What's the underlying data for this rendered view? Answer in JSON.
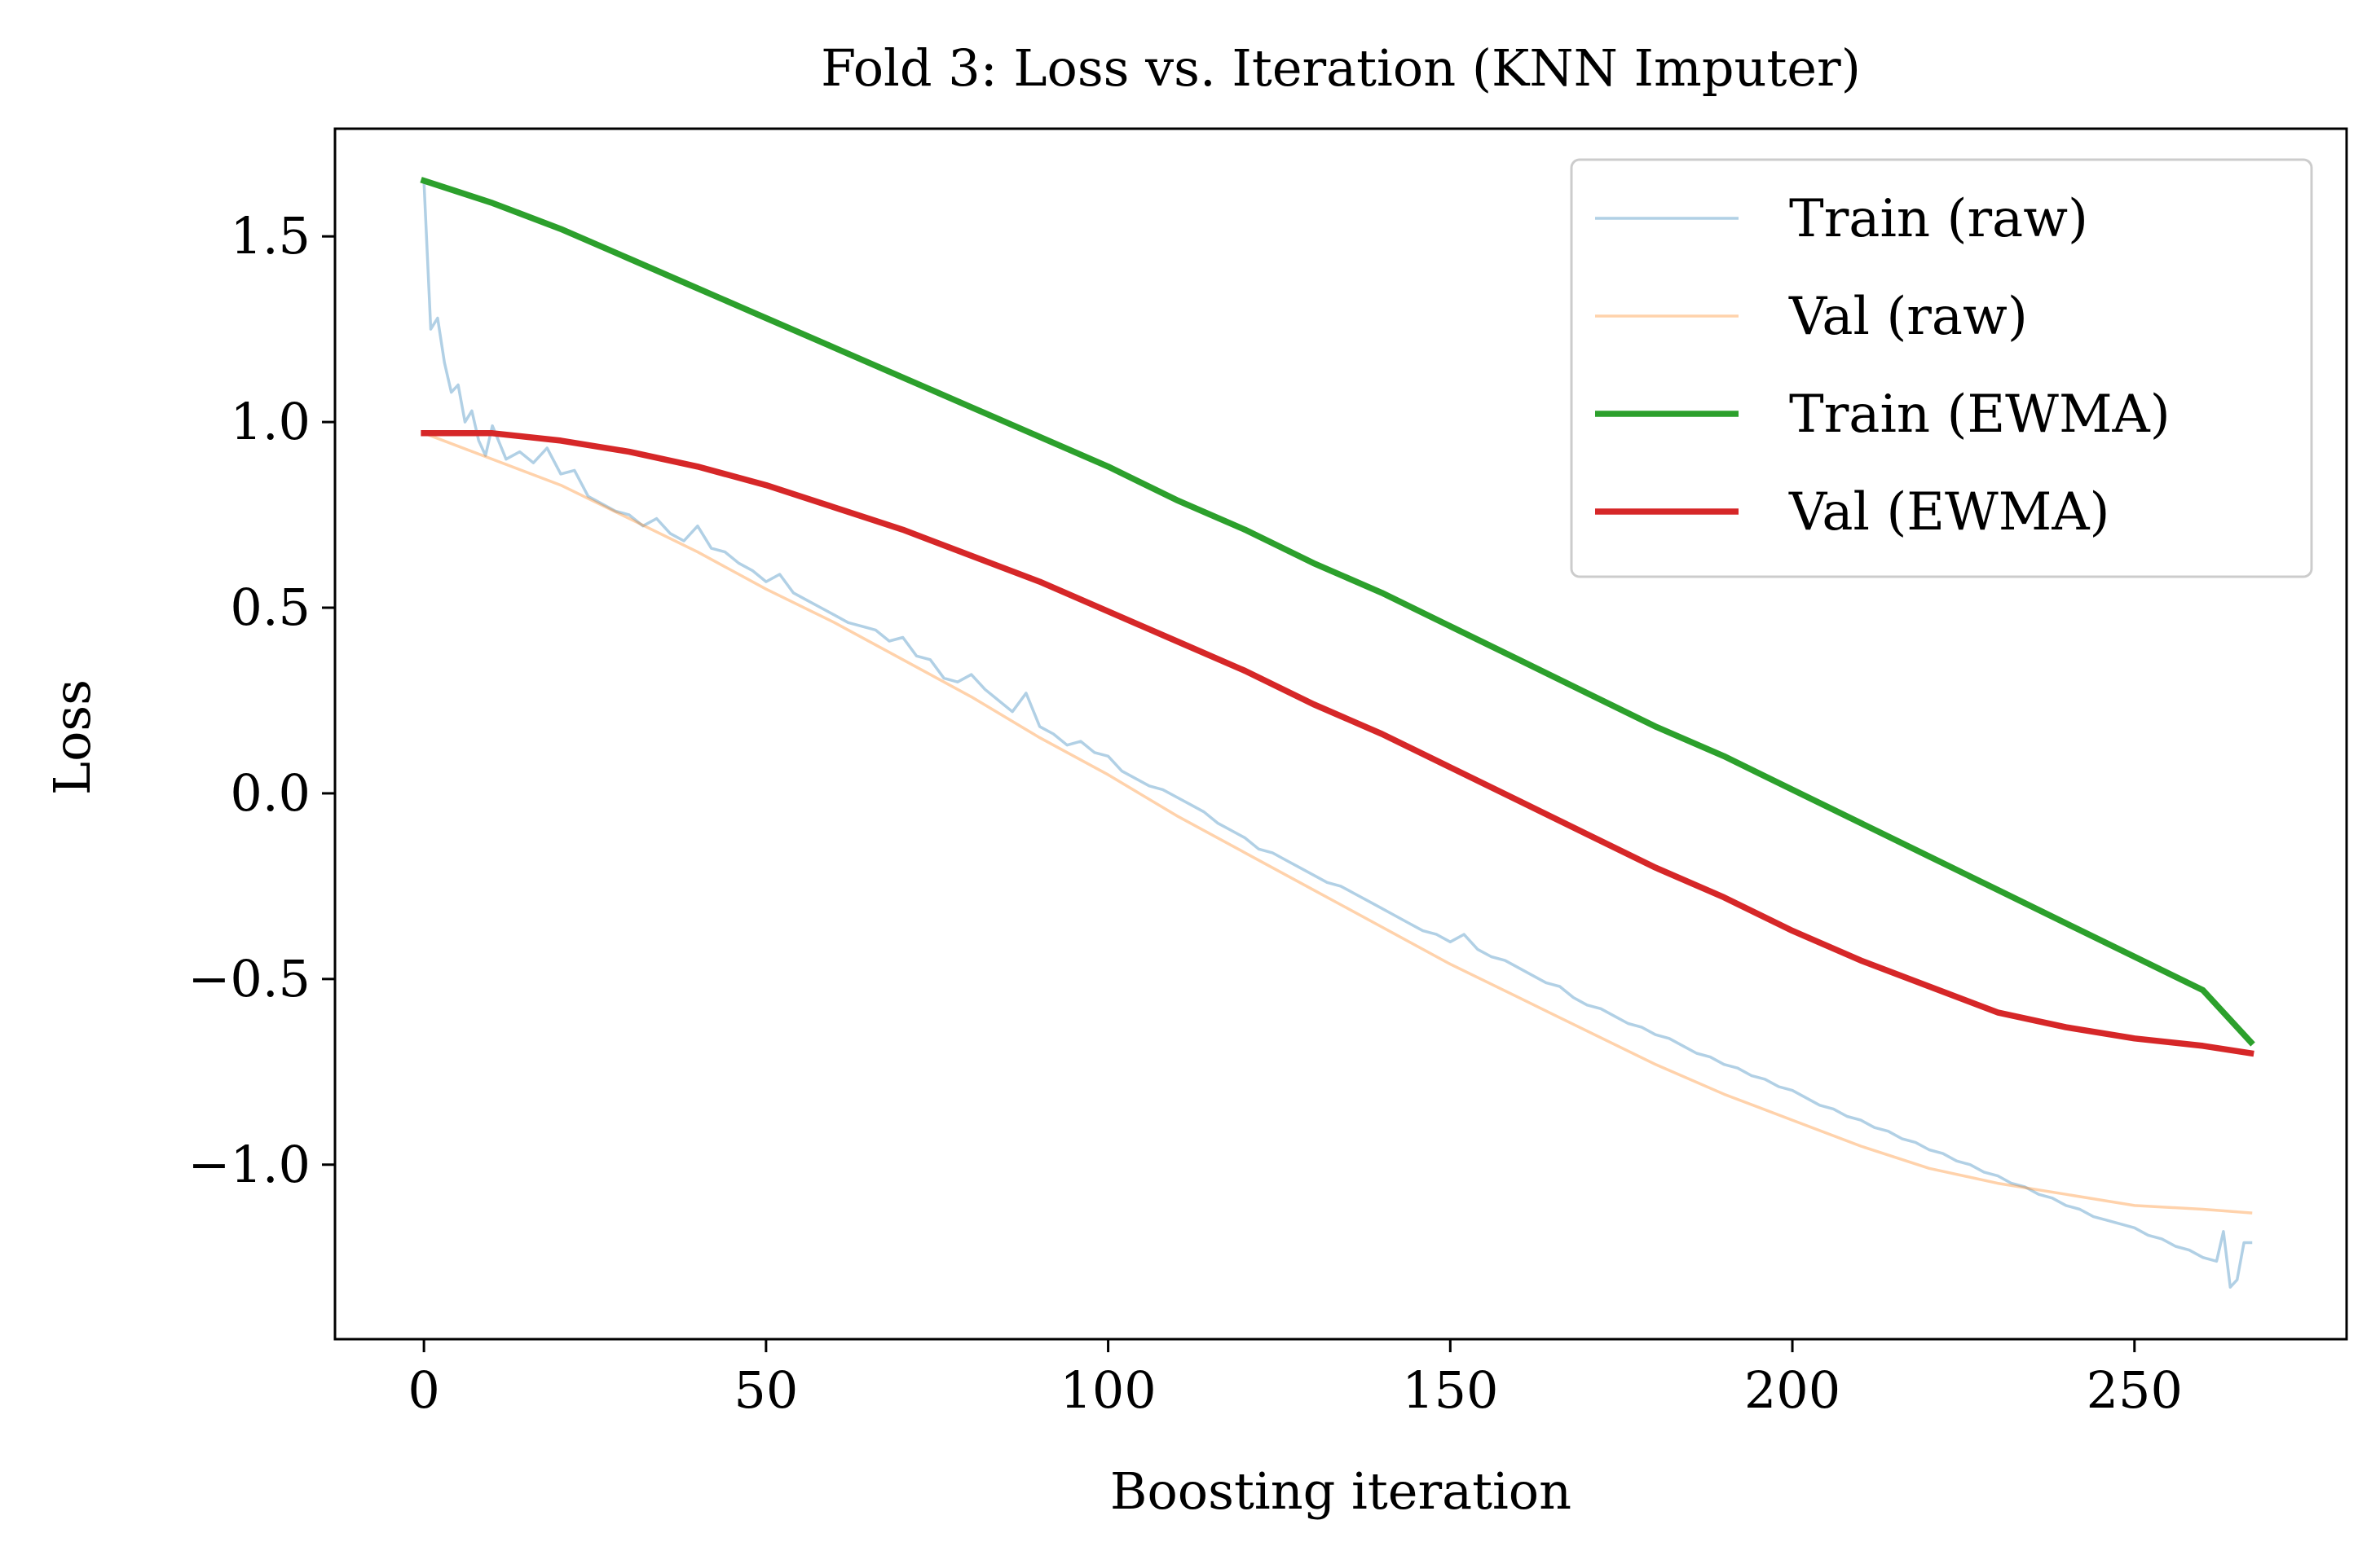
{
  "chart_data": {
    "type": "line",
    "title": "Fold 3: Loss vs. Iteration (KNN Imputer)",
    "xlabel": "Boosting iteration",
    "ylabel": "Loss",
    "xlim": [
      -13,
      281
    ],
    "ylim": [
      -1.47,
      1.79
    ],
    "xticks": [
      0,
      50,
      100,
      150,
      200,
      250
    ],
    "xtick_labels": [
      "0",
      "50",
      "100",
      "150",
      "200",
      "250"
    ],
    "yticks": [
      1.5,
      1.0,
      0.5,
      0.0,
      -0.5,
      -1.0
    ],
    "ytick_labels": [
      "1.5",
      "1.0",
      "0.5",
      "0.0",
      "−0.5",
      "−1.0"
    ],
    "grid": false,
    "legend_position": "top-right",
    "series": [
      {
        "name": "Train (raw)",
        "color": "#1f77b4",
        "opacity": 0.35,
        "width": "thin",
        "points": [
          [
            0,
            1.65
          ],
          [
            1,
            1.25
          ],
          [
            2,
            1.28
          ],
          [
            3,
            1.16
          ],
          [
            4,
            1.08
          ],
          [
            5,
            1.1
          ],
          [
            6,
            1.0
          ],
          [
            7,
            1.03
          ],
          [
            8,
            0.95
          ],
          [
            9,
            0.91
          ],
          [
            10,
            0.99
          ],
          [
            12,
            0.9
          ],
          [
            14,
            0.92
          ],
          [
            16,
            0.89
          ],
          [
            18,
            0.93
          ],
          [
            20,
            0.86
          ],
          [
            22,
            0.87
          ],
          [
            24,
            0.8
          ],
          [
            26,
            0.78
          ],
          [
            28,
            0.76
          ],
          [
            30,
            0.75
          ],
          [
            32,
            0.72
          ],
          [
            34,
            0.74
          ],
          [
            36,
            0.7
          ],
          [
            38,
            0.68
          ],
          [
            40,
            0.72
          ],
          [
            42,
            0.66
          ],
          [
            44,
            0.65
          ],
          [
            46,
            0.62
          ],
          [
            48,
            0.6
          ],
          [
            50,
            0.57
          ],
          [
            52,
            0.59
          ],
          [
            54,
            0.54
          ],
          [
            56,
            0.52
          ],
          [
            58,
            0.5
          ],
          [
            60,
            0.48
          ],
          [
            62,
            0.46
          ],
          [
            64,
            0.45
          ],
          [
            66,
            0.44
          ],
          [
            68,
            0.41
          ],
          [
            70,
            0.42
          ],
          [
            72,
            0.37
          ],
          [
            74,
            0.36
          ],
          [
            76,
            0.31
          ],
          [
            78,
            0.3
          ],
          [
            80,
            0.32
          ],
          [
            82,
            0.28
          ],
          [
            84,
            0.25
          ],
          [
            86,
            0.22
          ],
          [
            88,
            0.27
          ],
          [
            90,
            0.18
          ],
          [
            92,
            0.16
          ],
          [
            94,
            0.13
          ],
          [
            96,
            0.14
          ],
          [
            98,
            0.11
          ],
          [
            100,
            0.1
          ],
          [
            102,
            0.06
          ],
          [
            104,
            0.04
          ],
          [
            106,
            0.02
          ],
          [
            108,
            0.01
          ],
          [
            110,
            -0.01
          ],
          [
            112,
            -0.03
          ],
          [
            114,
            -0.05
          ],
          [
            116,
            -0.08
          ],
          [
            118,
            -0.1
          ],
          [
            120,
            -0.12
          ],
          [
            122,
            -0.15
          ],
          [
            124,
            -0.16
          ],
          [
            126,
            -0.18
          ],
          [
            128,
            -0.2
          ],
          [
            130,
            -0.22
          ],
          [
            132,
            -0.24
          ],
          [
            134,
            -0.25
          ],
          [
            136,
            -0.27
          ],
          [
            138,
            -0.29
          ],
          [
            140,
            -0.31
          ],
          [
            142,
            -0.33
          ],
          [
            144,
            -0.35
          ],
          [
            146,
            -0.37
          ],
          [
            148,
            -0.38
          ],
          [
            150,
            -0.4
          ],
          [
            152,
            -0.38
          ],
          [
            154,
            -0.42
          ],
          [
            156,
            -0.44
          ],
          [
            158,
            -0.45
          ],
          [
            160,
            -0.47
          ],
          [
            162,
            -0.49
          ],
          [
            164,
            -0.51
          ],
          [
            166,
            -0.52
          ],
          [
            168,
            -0.55
          ],
          [
            170,
            -0.57
          ],
          [
            172,
            -0.58
          ],
          [
            174,
            -0.6
          ],
          [
            176,
            -0.62
          ],
          [
            178,
            -0.63
          ],
          [
            180,
            -0.65
          ],
          [
            182,
            -0.66
          ],
          [
            184,
            -0.68
          ],
          [
            186,
            -0.7
          ],
          [
            188,
            -0.71
          ],
          [
            190,
            -0.73
          ],
          [
            192,
            -0.74
          ],
          [
            194,
            -0.76
          ],
          [
            196,
            -0.77
          ],
          [
            198,
            -0.79
          ],
          [
            200,
            -0.8
          ],
          [
            202,
            -0.82
          ],
          [
            204,
            -0.84
          ],
          [
            206,
            -0.85
          ],
          [
            208,
            -0.87
          ],
          [
            210,
            -0.88
          ],
          [
            212,
            -0.9
          ],
          [
            214,
            -0.91
          ],
          [
            216,
            -0.93
          ],
          [
            218,
            -0.94
          ],
          [
            220,
            -0.96
          ],
          [
            222,
            -0.97
          ],
          [
            224,
            -0.99
          ],
          [
            226,
            -1.0
          ],
          [
            228,
            -1.02
          ],
          [
            230,
            -1.03
          ],
          [
            232,
            -1.05
          ],
          [
            234,
            -1.06
          ],
          [
            236,
            -1.08
          ],
          [
            238,
            -1.09
          ],
          [
            240,
            -1.11
          ],
          [
            242,
            -1.12
          ],
          [
            244,
            -1.14
          ],
          [
            246,
            -1.15
          ],
          [
            248,
            -1.16
          ],
          [
            250,
            -1.17
          ],
          [
            252,
            -1.19
          ],
          [
            254,
            -1.2
          ],
          [
            256,
            -1.22
          ],
          [
            258,
            -1.23
          ],
          [
            260,
            -1.25
          ],
          [
            262,
            -1.26
          ],
          [
            263,
            -1.18
          ],
          [
            264,
            -1.33
          ],
          [
            265,
            -1.31
          ],
          [
            266,
            -1.21
          ],
          [
            267,
            -1.21
          ]
        ]
      },
      {
        "name": "Val (raw)",
        "color": "#ff7f0e",
        "opacity": 0.35,
        "width": "thin",
        "points": [
          [
            0,
            0.97
          ],
          [
            10,
            0.9
          ],
          [
            20,
            0.83
          ],
          [
            30,
            0.74
          ],
          [
            40,
            0.65
          ],
          [
            50,
            0.55
          ],
          [
            60,
            0.46
          ],
          [
            70,
            0.36
          ],
          [
            80,
            0.26
          ],
          [
            90,
            0.15
          ],
          [
            100,
            0.05
          ],
          [
            110,
            -0.06
          ],
          [
            120,
            -0.16
          ],
          [
            130,
            -0.26
          ],
          [
            140,
            -0.36
          ],
          [
            150,
            -0.46
          ],
          [
            160,
            -0.55
          ],
          [
            170,
            -0.64
          ],
          [
            180,
            -0.73
          ],
          [
            190,
            -0.81
          ],
          [
            200,
            -0.88
          ],
          [
            210,
            -0.95
          ],
          [
            220,
            -1.01
          ],
          [
            230,
            -1.05
          ],
          [
            240,
            -1.08
          ],
          [
            250,
            -1.11
          ],
          [
            260,
            -1.12
          ],
          [
            267,
            -1.13
          ]
        ]
      },
      {
        "name": "Train (EWMA)",
        "color": "#2ca02c",
        "opacity": 1,
        "width": "thick",
        "points": [
          [
            0,
            1.65
          ],
          [
            5,
            1.62
          ],
          [
            10,
            1.59
          ],
          [
            20,
            1.52
          ],
          [
            30,
            1.44
          ],
          [
            40,
            1.36
          ],
          [
            50,
            1.28
          ],
          [
            60,
            1.2
          ],
          [
            70,
            1.12
          ],
          [
            80,
            1.04
          ],
          [
            90,
            0.96
          ],
          [
            100,
            0.88
          ],
          [
            110,
            0.79
          ],
          [
            120,
            0.71
          ],
          [
            130,
            0.62
          ],
          [
            140,
            0.54
          ],
          [
            150,
            0.45
          ],
          [
            160,
            0.36
          ],
          [
            170,
            0.27
          ],
          [
            180,
            0.18
          ],
          [
            190,
            0.1
          ],
          [
            200,
            0.01
          ],
          [
            210,
            -0.08
          ],
          [
            220,
            -0.17
          ],
          [
            230,
            -0.26
          ],
          [
            240,
            -0.35
          ],
          [
            250,
            -0.44
          ],
          [
            260,
            -0.53
          ],
          [
            267,
            -0.67
          ]
        ]
      },
      {
        "name": "Val (EWMA)",
        "color": "#d62728",
        "opacity": 1,
        "width": "thick",
        "points": [
          [
            0,
            0.97
          ],
          [
            10,
            0.97
          ],
          [
            20,
            0.95
          ],
          [
            30,
            0.92
          ],
          [
            40,
            0.88
          ],
          [
            50,
            0.83
          ],
          [
            60,
            0.77
          ],
          [
            70,
            0.71
          ],
          [
            80,
            0.64
          ],
          [
            90,
            0.57
          ],
          [
            100,
            0.49
          ],
          [
            110,
            0.41
          ],
          [
            120,
            0.33
          ],
          [
            130,
            0.24
          ],
          [
            140,
            0.16
          ],
          [
            150,
            0.07
          ],
          [
            160,
            -0.02
          ],
          [
            170,
            -0.11
          ],
          [
            180,
            -0.2
          ],
          [
            190,
            -0.28
          ],
          [
            200,
            -0.37
          ],
          [
            210,
            -0.45
          ],
          [
            220,
            -0.52
          ],
          [
            230,
            -0.59
          ],
          [
            240,
            -0.63
          ],
          [
            250,
            -0.66
          ],
          [
            260,
            -0.68
          ],
          [
            267,
            -0.7
          ]
        ]
      }
    ]
  }
}
